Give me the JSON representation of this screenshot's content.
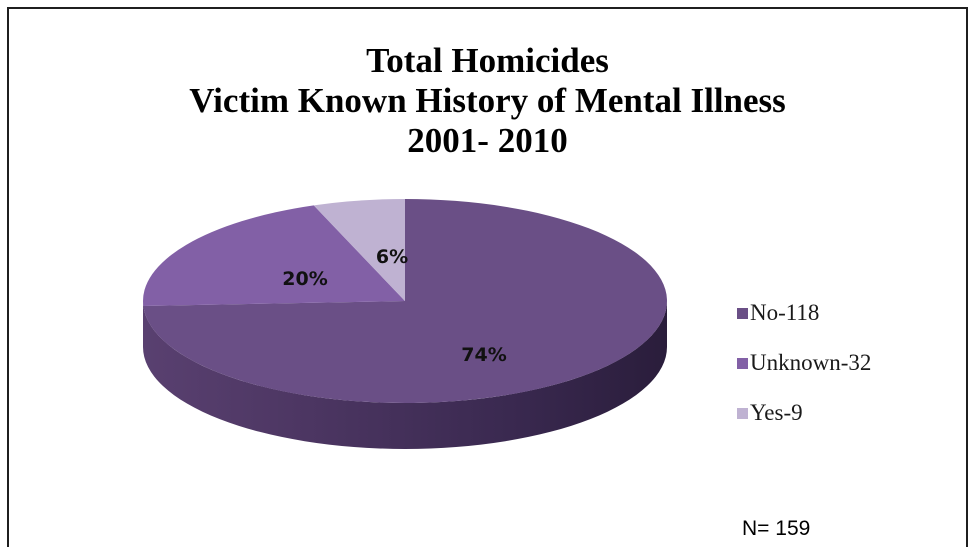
{
  "chart_data": {
    "type": "pie",
    "title_lines": [
      "Total Homicides",
      "Victim Known History of Mental Illness",
      "2001- 2010"
    ],
    "categories": [
      "No-118",
      "Unknown-32",
      "Yes-9"
    ],
    "values": [
      118,
      32,
      9
    ],
    "percent_labels": [
      "74%",
      "20%",
      "6%"
    ],
    "colors": [
      "#6a4f86",
      "#8260a6",
      "#bfb2d2"
    ],
    "legend_position": "right",
    "note": "N= 159"
  }
}
